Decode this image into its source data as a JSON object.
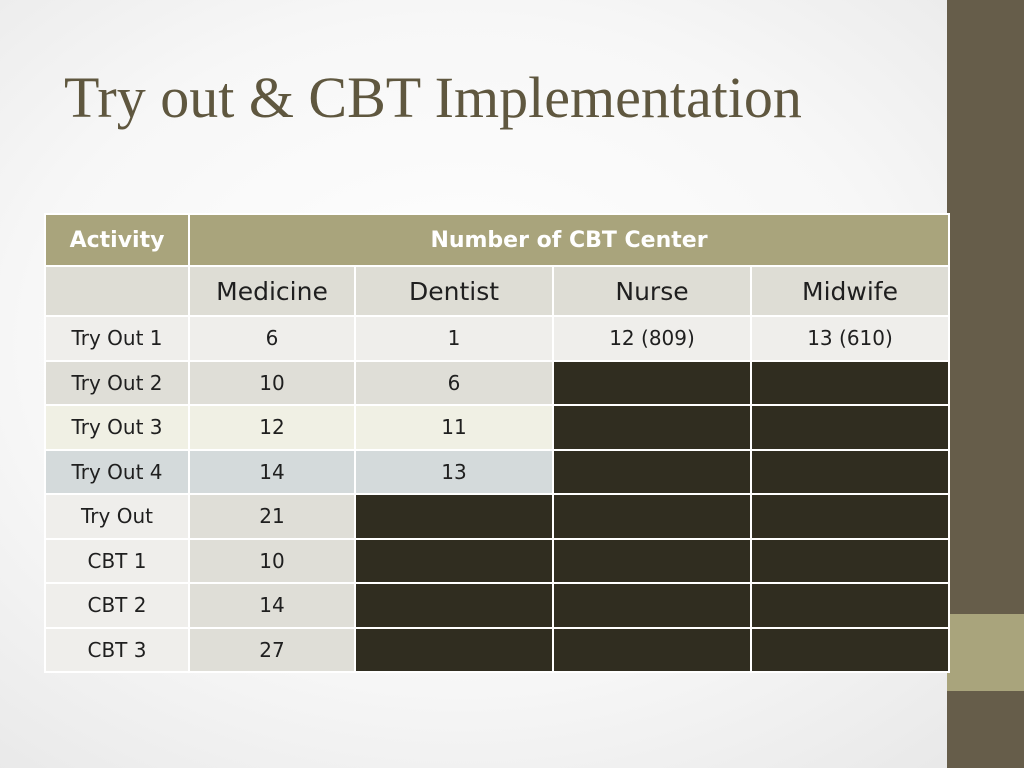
{
  "slide": {
    "title": "Try out & CBT Implementation",
    "colors": {
      "title": "#5f573f",
      "sidebar": "#665d4a",
      "accent": "#a9a47c",
      "empty_cell": "#302d20"
    }
  },
  "table": {
    "header": {
      "activity": "Activity",
      "group": "Number of CBT Center"
    },
    "subheader": [
      "Medicine",
      "Dentist",
      "Nurse",
      "Midwife"
    ],
    "rows": [
      {
        "label": "Try Out 1",
        "cells": [
          "6",
          "1",
          "12 (809)",
          "13 (610)"
        ]
      },
      {
        "label": "Try Out 2",
        "cells": [
          "10",
          "6",
          "",
          ""
        ]
      },
      {
        "label": "Try Out 3",
        "cells": [
          "12",
          "11",
          "",
          ""
        ]
      },
      {
        "label": "Try Out 4",
        "cells": [
          "14",
          "13",
          "",
          ""
        ]
      },
      {
        "label": "Try Out",
        "cells": [
          "21",
          "",
          "",
          ""
        ]
      },
      {
        "label": "CBT 1",
        "cells": [
          "10",
          "",
          "",
          ""
        ]
      },
      {
        "label": "CBT 2",
        "cells": [
          "14",
          "",
          "",
          ""
        ]
      },
      {
        "label": "CBT 3",
        "cells": [
          "27",
          "",
          "",
          ""
        ]
      }
    ]
  }
}
